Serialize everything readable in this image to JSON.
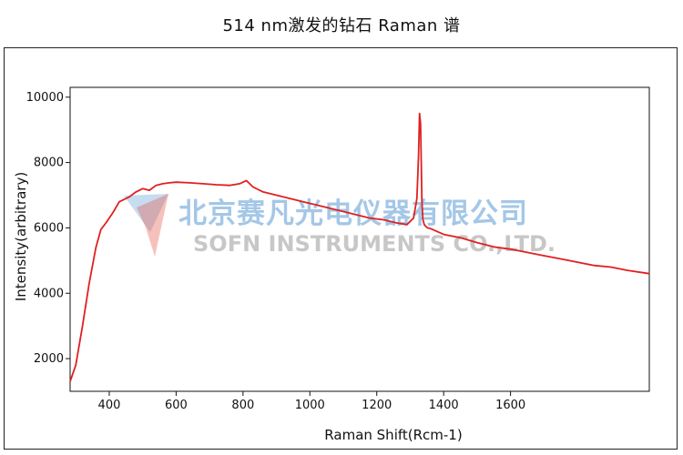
{
  "chart_data": {
    "type": "line",
    "title": "514 nm激发的钻石 Raman 谱",
    "xlabel": "Raman Shift(Rcm-1)",
    "ylabel": "Intensity(arbitrary)",
    "xlim": [
      283,
      2015
    ],
    "ylim": [
      1000,
      10300
    ],
    "x_ticks": [
      400,
      600,
      800,
      1000,
      1200,
      1400,
      1600
    ],
    "x_tick_labels": [
      "400",
      "600",
      "800",
      "1000",
      "1200",
      "1400",
      "1600"
    ],
    "y_ticks": [
      2000,
      4000,
      6000,
      8000,
      10000
    ],
    "y_tick_labels": [
      "2000",
      "4000",
      "6000",
      "8000",
      "10000"
    ],
    "grid": false,
    "series": [
      {
        "color": "#e02020",
        "x": [
          283,
          300,
          320,
          340,
          360,
          375,
          390,
          410,
          430,
          440,
          460,
          480,
          500,
          520,
          540,
          560,
          580,
          600,
          640,
          680,
          720,
          760,
          790,
          810,
          830,
          860,
          900,
          940,
          980,
          1020,
          1060,
          1100,
          1140,
          1180,
          1220,
          1260,
          1290,
          1310,
          1320,
          1325,
          1328,
          1331,
          1333,
          1335,
          1338,
          1342,
          1346,
          1352,
          1360,
          1400,
          1450,
          1500,
          1550,
          1600,
          1650,
          1700,
          1750,
          1800,
          1850,
          1900,
          1950,
          2015
        ],
        "y": [
          1300,
          1800,
          3000,
          4300,
          5400,
          5950,
          6150,
          6450,
          6800,
          6850,
          6950,
          7100,
          7200,
          7150,
          7300,
          7350,
          7380,
          7400,
          7380,
          7350,
          7320,
          7300,
          7350,
          7450,
          7250,
          7100,
          7000,
          6900,
          6800,
          6700,
          6600,
          6500,
          6400,
          6300,
          6250,
          6150,
          6100,
          6300,
          6900,
          8200,
          9500,
          9200,
          8000,
          6800,
          6250,
          6100,
          6050,
          6000,
          5980,
          5800,
          5700,
          5550,
          5420,
          5350,
          5250,
          5150,
          5050,
          4950,
          4850,
          4800,
          4700,
          4600
        ]
      }
    ]
  },
  "watermark": {
    "company_cn": "北京赛凡光电仪器有限公司",
    "company_en": "SOFN INSTRUMENTS CO.,LTD."
  }
}
